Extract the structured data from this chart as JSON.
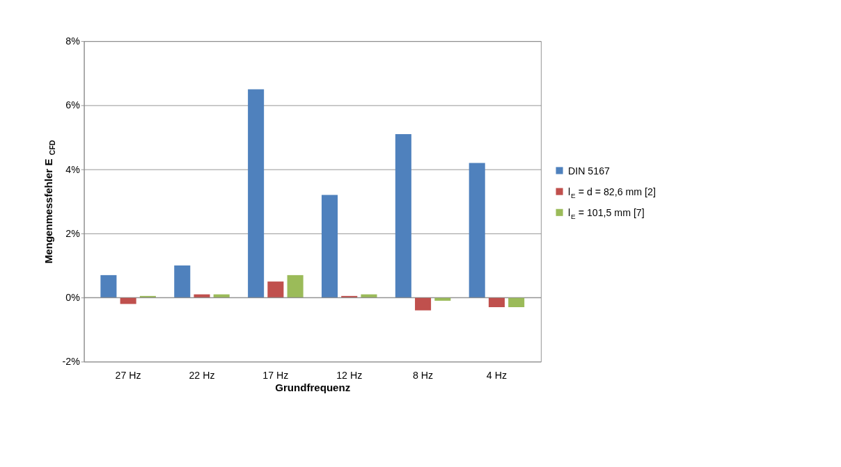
{
  "chart_data": {
    "type": "bar",
    "xlabel": "Grundfrequenz",
    "ylabel": "Mengenmessfehler E$_{CFD}$",
    "categories": [
      "27 Hz",
      "22 Hz",
      "17 Hz",
      "12 Hz",
      "8 Hz",
      "4 Hz"
    ],
    "series": [
      {
        "name": "DIN 5167",
        "color": "#4f81bd",
        "values": [
          0.7,
          1.0,
          6.5,
          3.2,
          5.1,
          4.2
        ]
      },
      {
        "name": "l$_{E}$ = d = 82,6 mm [2]",
        "color": "#c0504d",
        "values": [
          -0.2,
          0.1,
          0.5,
          0.05,
          -0.4,
          -0.3
        ]
      },
      {
        "name": "l$_{E}$ = 101,5 mm [7]",
        "color": "#9bbb59",
        "values": [
          0.05,
          0.1,
          0.7,
          0.1,
          -0.1,
          -0.3
        ]
      }
    ],
    "ylim": [
      -2,
      8
    ],
    "yticks": [
      {
        "value": -2,
        "label": "-2%"
      },
      {
        "value": 0,
        "label": "0%"
      },
      {
        "value": 2,
        "label": "2%"
      },
      {
        "value": 4,
        "label": "4%"
      },
      {
        "value": 6,
        "label": "6%"
      },
      {
        "value": 8,
        "label": "8%"
      }
    ],
    "grid": "y",
    "legend": "right"
  }
}
